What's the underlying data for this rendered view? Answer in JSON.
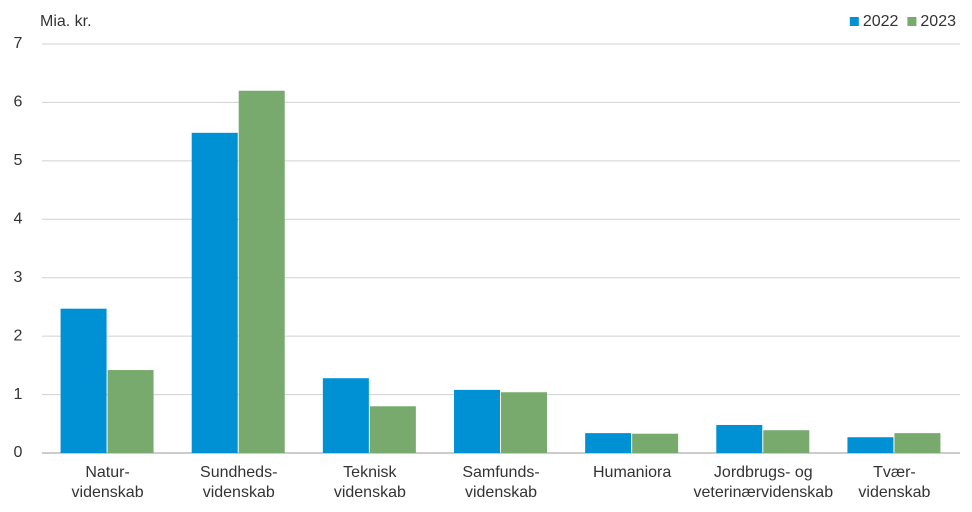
{
  "chart_data": {
    "type": "bar",
    "y_label": "Mia. kr.",
    "categories": [
      [
        "Natur-",
        "videnskab"
      ],
      [
        "Sundheds-",
        "videnskab"
      ],
      [
        "Teknisk",
        "videnskab"
      ],
      [
        "Samfunds-",
        "videnskab"
      ],
      [
        "Humaniora"
      ],
      [
        "Jordbrugs- og",
        "veterinærvidenskab"
      ],
      [
        "Tvær-",
        "videnskab"
      ]
    ],
    "series": [
      {
        "name": "2022",
        "color": "#0091d4",
        "values": [
          2.47,
          5.48,
          1.28,
          1.08,
          0.34,
          0.48,
          0.27
        ]
      },
      {
        "name": "2023",
        "color": "#78aa6e",
        "values": [
          1.42,
          6.2,
          0.8,
          1.04,
          0.33,
          0.39,
          0.34
        ]
      }
    ],
    "ylim": [
      0,
      7
    ],
    "yticks": [
      0,
      1,
      2,
      3,
      4,
      5,
      6,
      7
    ],
    "grid": true,
    "legend": "top-right"
  }
}
